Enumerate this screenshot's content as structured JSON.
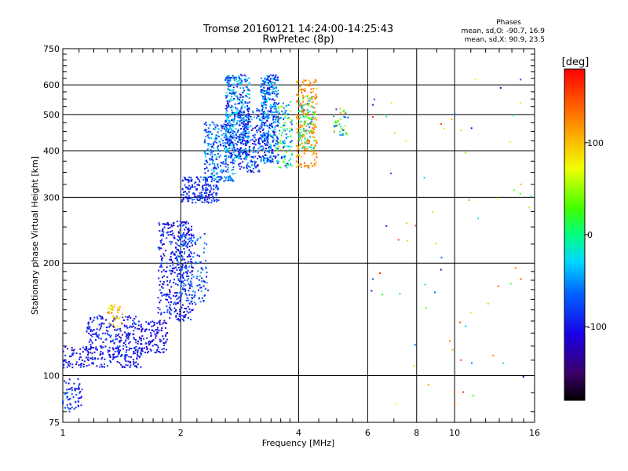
{
  "chart_data": {
    "type": "scatter",
    "title": "Tromsø 20160121 14:24:00-14:25:43",
    "subtitle": "RwPretec (8p)",
    "xlabel": "Frequency [MHz]",
    "ylabel": "Stationary phase Virtual Height [km]",
    "x_scale": "log",
    "y_scale": "log",
    "xlim": [
      1,
      16
    ],
    "ylim": [
      75,
      750
    ],
    "x_ticks": [
      "1",
      "2",
      "4",
      "6",
      "8",
      "10",
      "16"
    ],
    "x_tick_values": [
      1,
      2,
      4,
      6,
      8,
      10,
      16
    ],
    "y_ticks": [
      "75",
      "100",
      "200",
      "300",
      "400",
      "500",
      "600",
      "750"
    ],
    "y_tick_values": [
      75,
      100,
      200,
      300,
      400,
      500,
      600,
      750
    ],
    "grid": true,
    "stats": {
      "heading": "Phases",
      "line_o": "mean, sd,O: -90.7, 16.9",
      "line_x": "mean, sd,X:  90.9, 23.5"
    },
    "colorbar": {
      "label": "[deg]",
      "range": [
        -180,
        180
      ],
      "ticks": [
        "100",
        "0",
        "-100"
      ],
      "tick_values": [
        100,
        0,
        -100
      ]
    },
    "series_clusters": [
      {
        "f": [
          1.0,
          1.12
        ],
        "h": [
          80,
          98
        ],
        "ph": [
          -120,
          -60
        ],
        "n": 60
      },
      {
        "f": [
          1.0,
          1.6
        ],
        "h": [
          105,
          120
        ],
        "ph": [
          -125,
          -75
        ],
        "n": 200
      },
      {
        "f": [
          1.15,
          1.55
        ],
        "h": [
          118,
          145
        ],
        "ph": [
          -120,
          -70
        ],
        "n": 180
      },
      {
        "f": [
          1.3,
          1.42
        ],
        "h": [
          135,
          155
        ],
        "ph": [
          60,
          140
        ],
        "n": 35
      },
      {
        "f": [
          1.55,
          1.85
        ],
        "h": [
          115,
          140
        ],
        "ph": [
          -125,
          -80
        ],
        "n": 130
      },
      {
        "f": [
          1.75,
          2.15
        ],
        "h": [
          140,
          260
        ],
        "ph": [
          -125,
          -70
        ],
        "n": 380
      },
      {
        "f": [
          1.95,
          2.35
        ],
        "h": [
          155,
          240
        ],
        "ph": [
          -110,
          -40
        ],
        "n": 140
      },
      {
        "f": [
          2.0,
          2.5
        ],
        "h": [
          290,
          340
        ],
        "ph": [
          -120,
          -60
        ],
        "n": 180
      },
      {
        "f": [
          2.3,
          2.75
        ],
        "h": [
          330,
          480
        ],
        "ph": [
          -110,
          -20
        ],
        "n": 280
      },
      {
        "f": [
          2.6,
          3.0
        ],
        "h": [
          380,
          640
        ],
        "ph": [
          -115,
          -10
        ],
        "n": 420
      },
      {
        "f": [
          2.8,
          3.2
        ],
        "h": [
          350,
          520
        ],
        "ph": [
          -130,
          -40
        ],
        "n": 200
      },
      {
        "f": [
          3.2,
          3.55
        ],
        "h": [
          370,
          640
        ],
        "ph": [
          -120,
          -20
        ],
        "n": 400
      },
      {
        "f": [
          3.5,
          3.85
        ],
        "h": [
          360,
          540
        ],
        "ph": [
          -100,
          60
        ],
        "n": 120
      },
      {
        "f": [
          3.95,
          4.45
        ],
        "h": [
          360,
          620
        ],
        "ph": [
          90,
          150
        ],
        "n": 230
      },
      {
        "f": [
          4.0,
          4.4
        ],
        "h": [
          400,
          560
        ],
        "ph": [
          -60,
          40
        ],
        "n": 80
      },
      {
        "f": [
          4.9,
          5.35
        ],
        "h": [
          440,
          520
        ],
        "ph": [
          -80,
          120
        ],
        "n": 40
      },
      {
        "f": [
          6.1,
          16.0
        ],
        "h": [
          80,
          650
        ],
        "ph": [
          -130,
          170
        ],
        "n": 70
      }
    ]
  }
}
